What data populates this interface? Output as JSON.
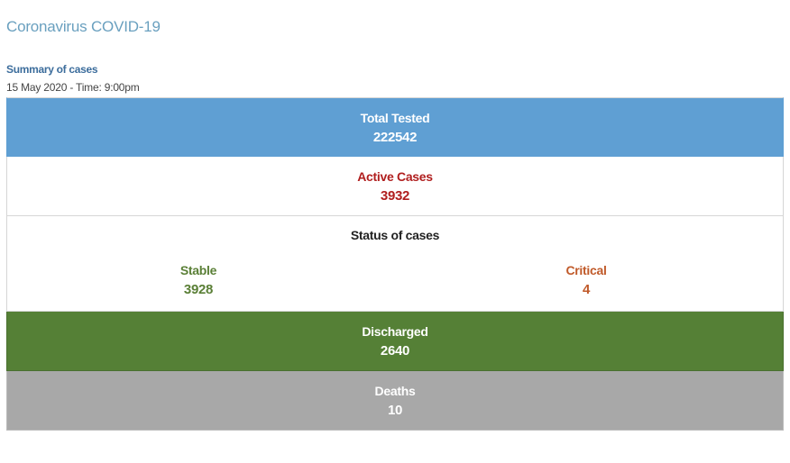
{
  "header": {
    "title": "Coronavirus COVID-19"
  },
  "summary": {
    "title": "Summary of cases",
    "timestamp": "15 May 2020 - Time: 9:00pm"
  },
  "rows": {
    "total_tested": {
      "label": "Total Tested",
      "value": "222542"
    },
    "active_cases": {
      "label": "Active Cases",
      "value": "3932"
    },
    "status": {
      "heading": "Status of cases",
      "stable": {
        "label": "Stable",
        "value": "3928"
      },
      "critical": {
        "label": "Critical",
        "value": "4"
      }
    },
    "discharged": {
      "label": "Discharged",
      "value": "2640"
    },
    "deaths": {
      "label": "Deaths",
      "value": "10"
    }
  },
  "colors": {
    "title": "#6aa0bf",
    "summary_title": "#3c6d9c",
    "tested_bg": "#5f9fd3",
    "active_text": "#b01e1e",
    "stable_text": "#5a7f36",
    "critical_text": "#c05a2a",
    "discharged_bg": "#558036",
    "deaths_bg": "#a8a8a8"
  }
}
